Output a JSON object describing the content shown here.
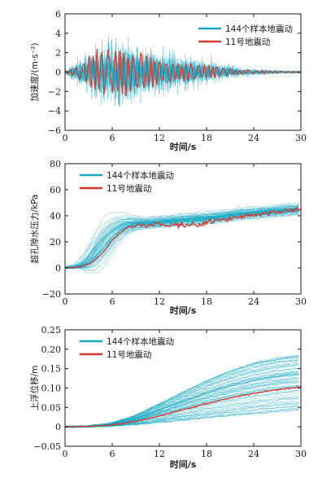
{
  "colors": {
    "samples": "#18a9c4",
    "record11": "#d7362b",
    "axis": "#1a1a1a"
  },
  "chart_data": [
    {
      "type": "line",
      "xlabel": "时间/s",
      "ylabel": "加速度/(m·s⁻²)",
      "xlim": [
        0,
        30
      ],
      "ylim": [
        -6,
        6
      ],
      "xticks": [
        "0",
        "6",
        "12",
        "18",
        "24",
        "30"
      ],
      "yticks": [
        "−6",
        "−4",
        "−2",
        "0",
        "2",
        "4",
        "6"
      ],
      "legend_position": "top-right",
      "series": [
        {
          "name": "144个样本地震动",
          "envelope_x": [
            0,
            2,
            4,
            6,
            8,
            10,
            12,
            14,
            16,
            18,
            20,
            22,
            24,
            26,
            28,
            30
          ],
          "envelope_amp": [
            0.2,
            1.6,
            3.3,
            3.6,
            3.4,
            3.0,
            2.6,
            2.2,
            1.8,
            1.3,
            0.9,
            0.6,
            0.4,
            0.3,
            0.2,
            0.2
          ]
        },
        {
          "name": "11号地震动",
          "envelope_x": [
            0,
            2,
            4,
            6,
            8,
            10,
            12,
            14,
            16,
            18,
            20,
            22,
            24,
            26,
            28,
            30
          ],
          "envelope_amp": [
            0.1,
            0.8,
            2.6,
            2.8,
            2.7,
            2.2,
            1.5,
            1.2,
            1.0,
            0.8,
            0.5,
            0.3,
            0.2,
            0.15,
            0.1,
            0.05
          ]
        }
      ]
    },
    {
      "type": "line",
      "xlabel": "时间/s",
      "ylabel": "超孔隙水压力/kPa",
      "xlim": [
        0,
        30
      ],
      "ylim": [
        -20,
        80
      ],
      "xticks": [
        "0",
        "6",
        "12",
        "18",
        "24",
        "30"
      ],
      "yticks": [
        "−20",
        "0",
        "20",
        "40",
        "60",
        "80"
      ],
      "legend_position": "top-left",
      "series": [
        {
          "name": "144个样本地震动",
          "x": [
            0,
            2,
            3,
            4,
            5,
            6,
            7,
            8,
            9,
            10,
            12,
            14,
            16,
            18,
            20,
            22,
            24,
            26,
            28,
            30
          ],
          "y": [
            0,
            1,
            4,
            11,
            19,
            26,
            30,
            33,
            34,
            34,
            35,
            36,
            37,
            38,
            39,
            41,
            42,
            43,
            44,
            45
          ],
          "spread": [
            0,
            1,
            4,
            8,
            10,
            9,
            7,
            5,
            4,
            3,
            3,
            3,
            3,
            3,
            3,
            3,
            3,
            3,
            3,
            3
          ]
        },
        {
          "name": "11号地震动",
          "x": [
            0,
            1,
            2,
            3,
            4,
            5,
            6,
            7,
            8,
            9,
            10,
            11,
            12,
            13,
            14,
            15,
            16,
            17,
            18,
            20,
            22,
            24,
            26,
            28,
            30
          ],
          "y": [
            0,
            0.2,
            1,
            3,
            7,
            13,
            21,
            27,
            31,
            32,
            33,
            33,
            34,
            31,
            33,
            32,
            34,
            32,
            35,
            37,
            39,
            41,
            42,
            44,
            45
          ]
        }
      ]
    },
    {
      "type": "line",
      "xlabel": "时间/s",
      "ylabel": "上浮位移/m",
      "xlim": [
        0,
        30
      ],
      "ylim": [
        -0.05,
        0.25
      ],
      "xticks": [
        "0",
        "6",
        "12",
        "18",
        "24",
        "30"
      ],
      "yticks": [
        "−0.05",
        "0",
        "0.05",
        "0.10",
        "0.15",
        "0.20",
        "0.25"
      ],
      "legend_position": "top-left",
      "series": [
        {
          "name": "144个样本地震动",
          "x": [
            0,
            3,
            6,
            9,
            12,
            15,
            18,
            21,
            24,
            27,
            30
          ],
          "y_low": [
            0,
            0,
            0.002,
            0.005,
            0.01,
            0.015,
            0.02,
            0.025,
            0.03,
            0.035,
            0.04
          ],
          "y_high": [
            0,
            0.002,
            0.01,
            0.03,
            0.06,
            0.09,
            0.12,
            0.145,
            0.165,
            0.178,
            0.185
          ]
        },
        {
          "name": "11号地震动",
          "x": [
            0,
            3,
            6,
            9,
            12,
            15,
            18,
            21,
            24,
            27,
            30
          ],
          "y": [
            0,
            0.001,
            0.005,
            0.014,
            0.028,
            0.044,
            0.06,
            0.074,
            0.086,
            0.096,
            0.103
          ]
        }
      ]
    }
  ]
}
